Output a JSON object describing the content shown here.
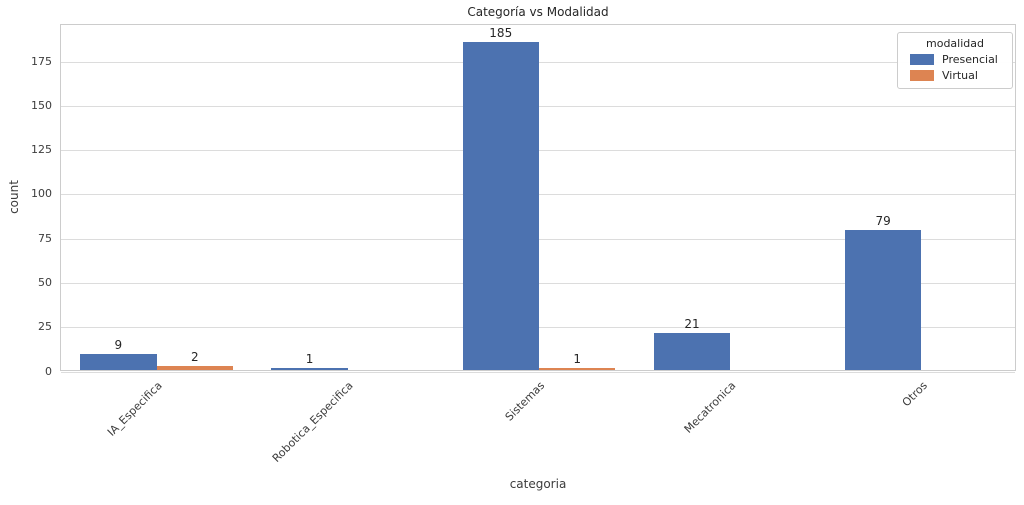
{
  "chart_data": {
    "type": "bar",
    "title": "Categoría vs Modalidad",
    "xlabel": "categoria",
    "ylabel": "count",
    "categories": [
      "IA_Especifica",
      "Robotica_Especifica",
      "Sistemas",
      "Mecatronica",
      "Otros"
    ],
    "series": [
      {
        "name": "Presencial",
        "color": "#4C72B0",
        "values": [
          9,
          1,
          185,
          21,
          79
        ]
      },
      {
        "name": "Virtual",
        "color": "#DD8452",
        "values": [
          2,
          0,
          1,
          0,
          0
        ]
      }
    ],
    "bar_value_labels": {
      "Presencial": [
        "9",
        "1",
        "185",
        "21",
        "79"
      ],
      "Virtual": [
        "2",
        "",
        "1",
        "",
        ""
      ]
    },
    "yticks": [
      "0",
      "25",
      "50",
      "75",
      "100",
      "125",
      "150",
      "175"
    ],
    "ylim": [
      0,
      196
    ],
    "grid": true,
    "xtick_rotation": 45,
    "legend": {
      "title": "modalidad",
      "position": "upper right"
    }
  }
}
